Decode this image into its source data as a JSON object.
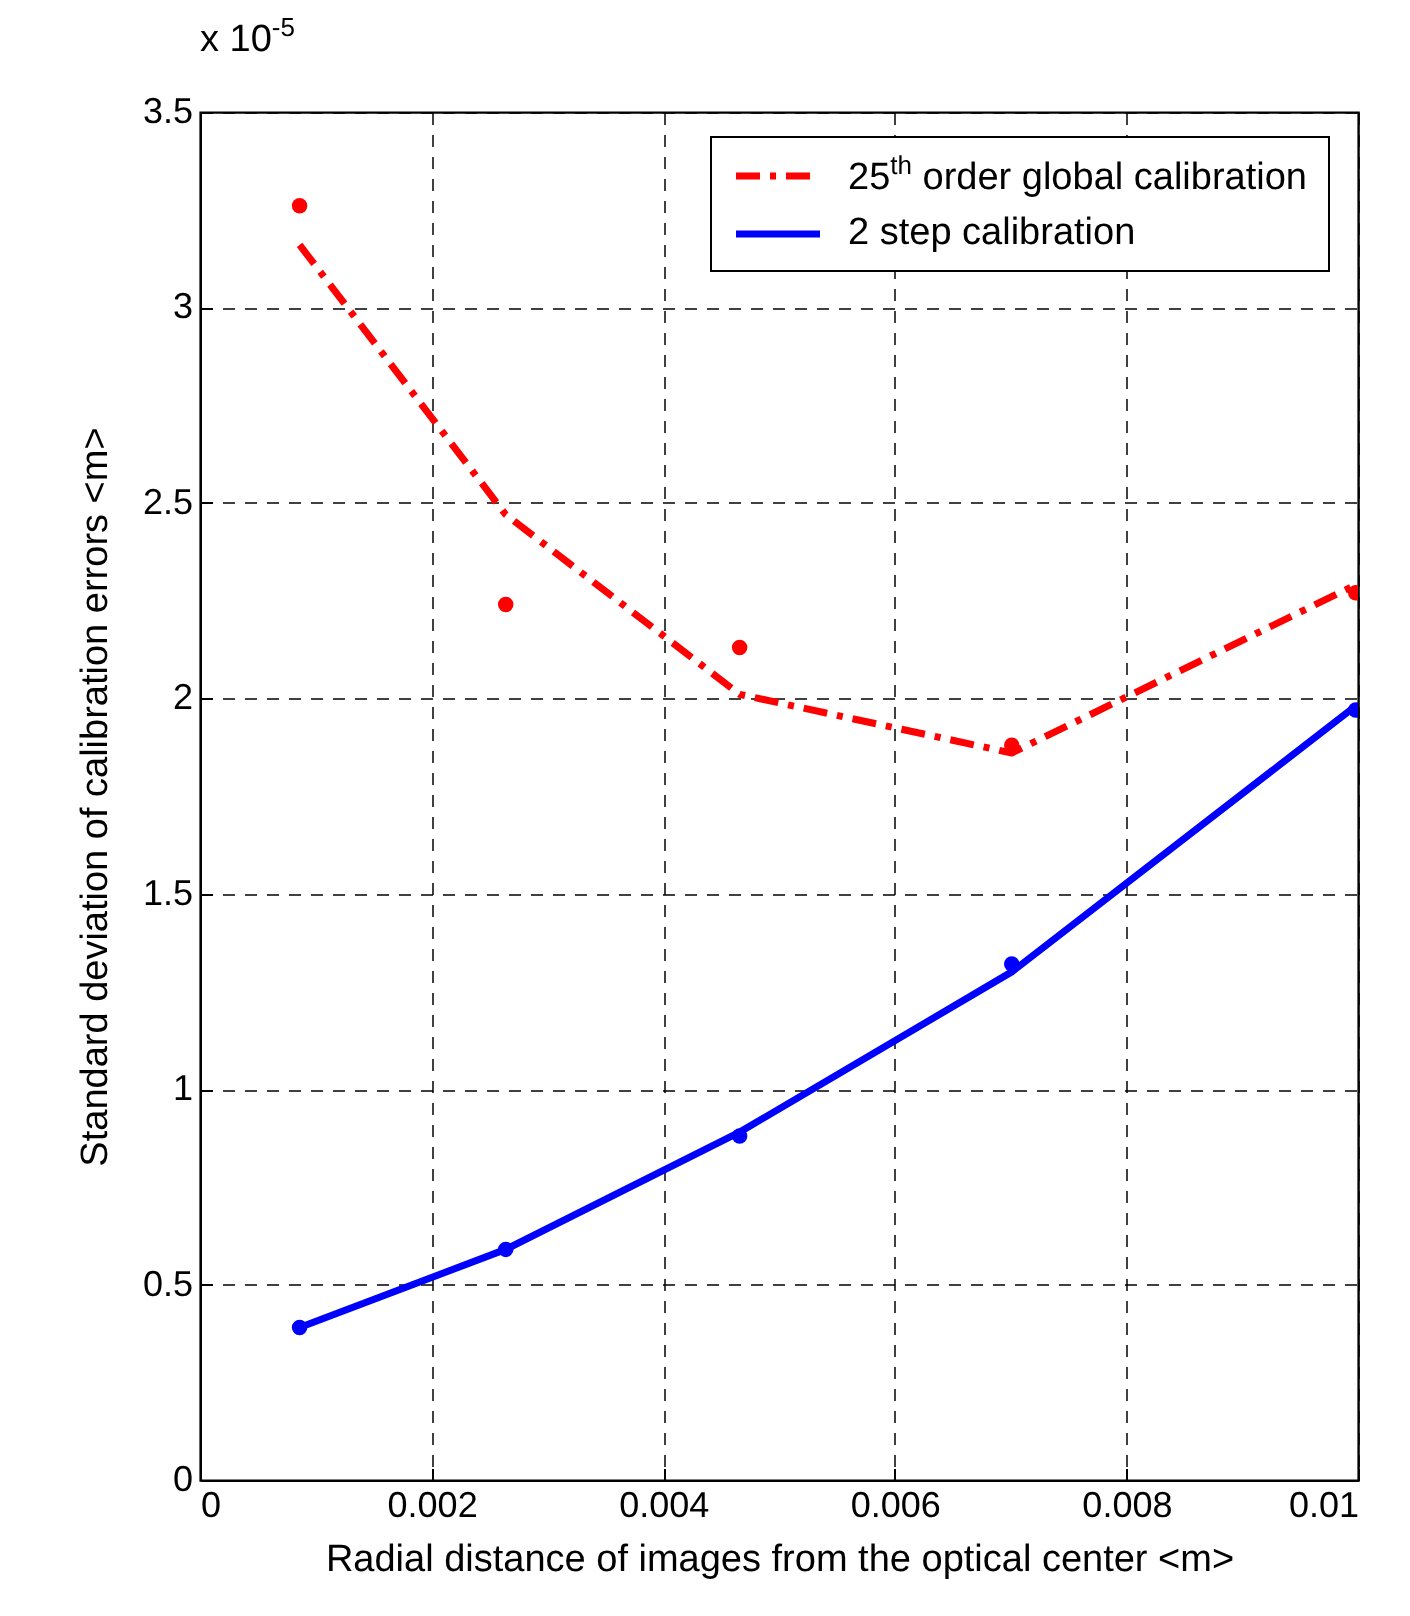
{
  "chart_data": {
    "type": "line",
    "xlabel": "Radial distance of images from the optical center <m>",
    "ylabel": "Standard deviation of calibration errors <m>",
    "annotations": [
      "x 10$^{-5}$"
    ],
    "x": [
      0.00086,
      0.00264,
      0.00466,
      0.00701,
      0.00998
    ],
    "xlim": [
      0,
      0.01
    ],
    "xticks": [
      0,
      0.002,
      0.004,
      0.006,
      0.008,
      0.01
    ],
    "ylim": [
      0,
      3.5
    ],
    "yticks": [
      0,
      0.5,
      1,
      1.5,
      2,
      2.5,
      3,
      3.5
    ],
    "grid": true,
    "legend": "top right",
    "series": [
      {
        "name": "25$^{th}$ order global calibration",
        "type": "line",
        "color": "#ff0000",
        "line_style": "dashdot",
        "values": [
          3.16,
          2.47,
          2.01,
          1.86,
          2.29
        ]
      },
      {
        "type": "scatter",
        "color": "#ff0000",
        "marker": "circle",
        "values": [
          3.26,
          2.24,
          2.13,
          1.88,
          2.27
        ]
      },
      {
        "name": "2 step calibration",
        "type": "line",
        "color": "#0000ff",
        "line_style": "solid",
        "values": [
          0.39,
          0.59,
          0.89,
          1.3,
          1.98
        ]
      },
      {
        "type": "scatter",
        "color": "#0000ff",
        "marker": "circle",
        "values": [
          0.39,
          0.59,
          0.88,
          1.32,
          1.97
        ]
      }
    ]
  }
}
